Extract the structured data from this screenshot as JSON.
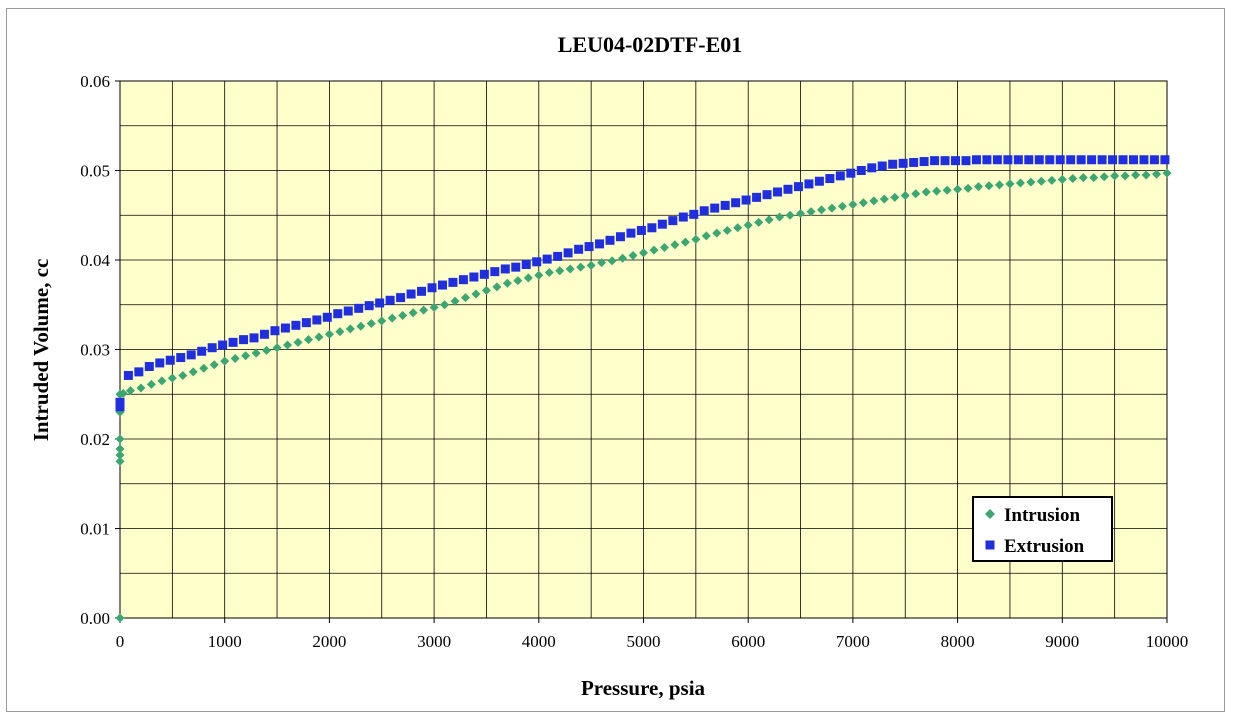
{
  "chart_data": {
    "type": "scatter",
    "title": "LEU04-02DTF-E01",
    "xlabel": "Pressure, psia",
    "ylabel": "Intruded Volume, cc",
    "xlim": [
      0,
      10000
    ],
    "ylim": [
      0,
      0.06
    ],
    "x_ticks": [
      "0",
      "1000",
      "2000",
      "3000",
      "4000",
      "5000",
      "6000",
      "7000",
      "8000",
      "9000",
      "10000"
    ],
    "y_ticks": [
      "0.00",
      "0.01",
      "0.02",
      "0.03",
      "0.04",
      "0.05",
      "0.06"
    ],
    "grid": true,
    "legend_position": "bottom-right",
    "plot_background": "#ffffcc",
    "series": [
      {
        "name": "Intrusion",
        "marker": "diamond",
        "color": "#3aa672",
        "points": [
          [
            0,
            0.0
          ],
          [
            0,
            0.0175
          ],
          [
            0,
            0.0182
          ],
          [
            0,
            0.0189
          ],
          [
            0,
            0.02
          ],
          [
            0,
            0.023
          ],
          [
            0,
            0.025
          ],
          [
            30,
            0.0251
          ],
          [
            100,
            0.0254
          ],
          [
            200,
            0.0257
          ],
          [
            300,
            0.0261
          ],
          [
            400,
            0.0265
          ],
          [
            500,
            0.0268
          ],
          [
            600,
            0.0271
          ],
          [
            700,
            0.0275
          ],
          [
            800,
            0.0279
          ],
          [
            900,
            0.0283
          ],
          [
            1000,
            0.0287
          ],
          [
            1100,
            0.029
          ],
          [
            1200,
            0.0293
          ],
          [
            1300,
            0.0296
          ],
          [
            1400,
            0.0299
          ],
          [
            1500,
            0.0302
          ],
          [
            1600,
            0.0305
          ],
          [
            1700,
            0.0308
          ],
          [
            1800,
            0.0311
          ],
          [
            1900,
            0.0314
          ],
          [
            2000,
            0.0317
          ],
          [
            2100,
            0.032
          ],
          [
            2200,
            0.0323
          ],
          [
            2300,
            0.0326
          ],
          [
            2400,
            0.0329
          ],
          [
            2500,
            0.0332
          ],
          [
            2600,
            0.0335
          ],
          [
            2700,
            0.0338
          ],
          [
            2800,
            0.0341
          ],
          [
            2900,
            0.0344
          ],
          [
            3000,
            0.0347
          ],
          [
            3100,
            0.035
          ],
          [
            3200,
            0.0354
          ],
          [
            3300,
            0.0358
          ],
          [
            3400,
            0.0362
          ],
          [
            3500,
            0.0366
          ],
          [
            3600,
            0.037
          ],
          [
            3700,
            0.0374
          ],
          [
            3800,
            0.0377
          ],
          [
            3900,
            0.038
          ],
          [
            4000,
            0.0383
          ],
          [
            4100,
            0.0386
          ],
          [
            4200,
            0.0388
          ],
          [
            4300,
            0.039
          ],
          [
            4400,
            0.0392
          ],
          [
            4500,
            0.0394
          ],
          [
            4600,
            0.0397
          ],
          [
            4700,
            0.0399
          ],
          [
            4800,
            0.0402
          ],
          [
            4900,
            0.0405
          ],
          [
            5000,
            0.0408
          ],
          [
            5100,
            0.0411
          ],
          [
            5200,
            0.0414
          ],
          [
            5300,
            0.0417
          ],
          [
            5400,
            0.042
          ],
          [
            5500,
            0.0423
          ],
          [
            5600,
            0.0427
          ],
          [
            5700,
            0.043
          ],
          [
            5800,
            0.0433
          ],
          [
            5900,
            0.0436
          ],
          [
            6000,
            0.0439
          ],
          [
            6100,
            0.0442
          ],
          [
            6200,
            0.0445
          ],
          [
            6300,
            0.0448
          ],
          [
            6400,
            0.045
          ],
          [
            6500,
            0.0452
          ],
          [
            6600,
            0.0454
          ],
          [
            6700,
            0.0456
          ],
          [
            6800,
            0.0458
          ],
          [
            6900,
            0.046
          ],
          [
            7000,
            0.0462
          ],
          [
            7100,
            0.0464
          ],
          [
            7200,
            0.0466
          ],
          [
            7300,
            0.0468
          ],
          [
            7400,
            0.047
          ],
          [
            7500,
            0.0472
          ],
          [
            7600,
            0.0474
          ],
          [
            7700,
            0.0476
          ],
          [
            7800,
            0.0477
          ],
          [
            7900,
            0.0478
          ],
          [
            8000,
            0.0479
          ],
          [
            8100,
            0.048
          ],
          [
            8200,
            0.0482
          ],
          [
            8300,
            0.0483
          ],
          [
            8400,
            0.0484
          ],
          [
            8500,
            0.0485
          ],
          [
            8600,
            0.0486
          ],
          [
            8700,
            0.0487
          ],
          [
            8800,
            0.0488
          ],
          [
            8900,
            0.0489
          ],
          [
            9000,
            0.049
          ],
          [
            9100,
            0.0491
          ],
          [
            9200,
            0.0492
          ],
          [
            9300,
            0.0492
          ],
          [
            9400,
            0.0493
          ],
          [
            9500,
            0.0494
          ],
          [
            9600,
            0.0494
          ],
          [
            9700,
            0.0495
          ],
          [
            9800,
            0.0495
          ],
          [
            9900,
            0.0496
          ],
          [
            10000,
            0.0497
          ]
        ]
      },
      {
        "name": "Extrusion",
        "marker": "square",
        "color": "#1f2fe0",
        "points": [
          [
            0,
            0.0236
          ],
          [
            0,
            0.0241
          ],
          [
            80,
            0.0271
          ],
          [
            180,
            0.0275
          ],
          [
            280,
            0.0281
          ],
          [
            380,
            0.0285
          ],
          [
            480,
            0.0288
          ],
          [
            580,
            0.0291
          ],
          [
            680,
            0.0294
          ],
          [
            780,
            0.0298
          ],
          [
            880,
            0.0302
          ],
          [
            980,
            0.0305
          ],
          [
            1080,
            0.0308
          ],
          [
            1180,
            0.0311
          ],
          [
            1280,
            0.0313
          ],
          [
            1380,
            0.0317
          ],
          [
            1480,
            0.0321
          ],
          [
            1580,
            0.0324
          ],
          [
            1680,
            0.0327
          ],
          [
            1780,
            0.033
          ],
          [
            1880,
            0.0333
          ],
          [
            1980,
            0.0336
          ],
          [
            2080,
            0.034
          ],
          [
            2180,
            0.0343
          ],
          [
            2280,
            0.0346
          ],
          [
            2380,
            0.0349
          ],
          [
            2480,
            0.0352
          ],
          [
            2580,
            0.0355
          ],
          [
            2680,
            0.0358
          ],
          [
            2780,
            0.0362
          ],
          [
            2880,
            0.0365
          ],
          [
            2980,
            0.0369
          ],
          [
            3080,
            0.0372
          ],
          [
            3180,
            0.0375
          ],
          [
            3280,
            0.0378
          ],
          [
            3380,
            0.0381
          ],
          [
            3480,
            0.0384
          ],
          [
            3580,
            0.0387
          ],
          [
            3680,
            0.039
          ],
          [
            3780,
            0.0392
          ],
          [
            3880,
            0.0395
          ],
          [
            3980,
            0.0398
          ],
          [
            4080,
            0.0401
          ],
          [
            4180,
            0.0404
          ],
          [
            4280,
            0.0408
          ],
          [
            4380,
            0.0412
          ],
          [
            4480,
            0.0415
          ],
          [
            4580,
            0.0418
          ],
          [
            4680,
            0.0422
          ],
          [
            4780,
            0.0426
          ],
          [
            4880,
            0.043
          ],
          [
            4980,
            0.0433
          ],
          [
            5080,
            0.0436
          ],
          [
            5180,
            0.044
          ],
          [
            5280,
            0.0444
          ],
          [
            5380,
            0.0448
          ],
          [
            5480,
            0.0451
          ],
          [
            5580,
            0.0455
          ],
          [
            5680,
            0.0458
          ],
          [
            5780,
            0.0461
          ],
          [
            5880,
            0.0464
          ],
          [
            5980,
            0.0467
          ],
          [
            6080,
            0.047
          ],
          [
            6180,
            0.0473
          ],
          [
            6280,
            0.0476
          ],
          [
            6380,
            0.0479
          ],
          [
            6480,
            0.0482
          ],
          [
            6580,
            0.0485
          ],
          [
            6680,
            0.0488
          ],
          [
            6780,
            0.0491
          ],
          [
            6880,
            0.0494
          ],
          [
            6980,
            0.0497
          ],
          [
            7080,
            0.05
          ],
          [
            7180,
            0.0503
          ],
          [
            7280,
            0.0505
          ],
          [
            7380,
            0.0507
          ],
          [
            7480,
            0.0508
          ],
          [
            7580,
            0.0509
          ],
          [
            7680,
            0.051
          ],
          [
            7780,
            0.0511
          ],
          [
            7880,
            0.0511
          ],
          [
            7980,
            0.0511
          ],
          [
            8080,
            0.0511
          ],
          [
            8180,
            0.0512
          ],
          [
            8280,
            0.0512
          ],
          [
            8380,
            0.0512
          ],
          [
            8480,
            0.0512
          ],
          [
            8580,
            0.0512
          ],
          [
            8680,
            0.0512
          ],
          [
            8780,
            0.0512
          ],
          [
            8880,
            0.0512
          ],
          [
            8980,
            0.0512
          ],
          [
            9080,
            0.0512
          ],
          [
            9180,
            0.0512
          ],
          [
            9280,
            0.0512
          ],
          [
            9380,
            0.0512
          ],
          [
            9480,
            0.0512
          ],
          [
            9580,
            0.0512
          ],
          [
            9680,
            0.0512
          ],
          [
            9780,
            0.0512
          ],
          [
            9880,
            0.0512
          ],
          [
            9980,
            0.0512
          ]
        ]
      }
    ]
  }
}
